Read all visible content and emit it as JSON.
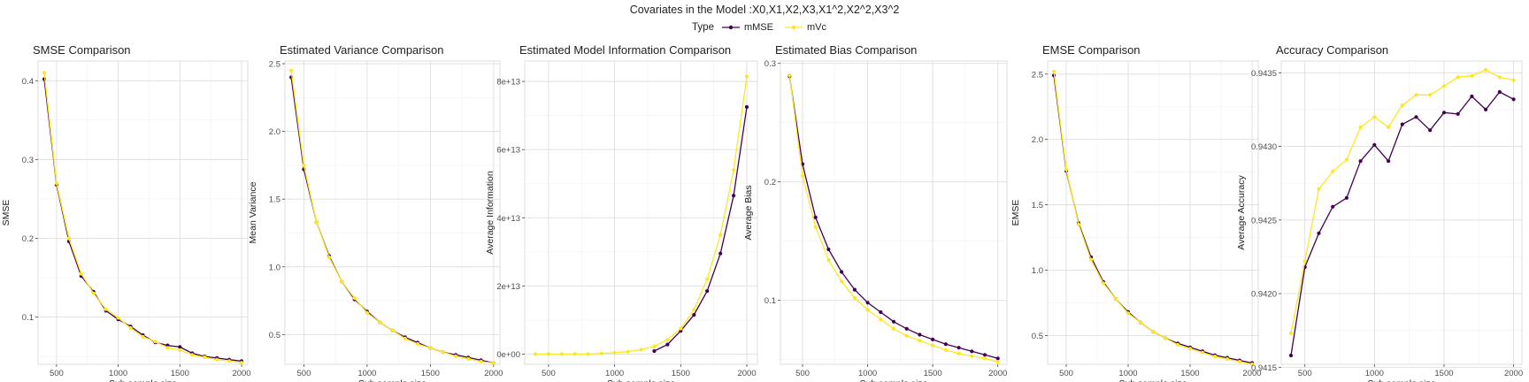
{
  "figure": {
    "title": "Covariates in the Model :X0,X1,X2,X3,X1^2,X2^2,X3^2",
    "legend": {
      "title": "Type",
      "items": [
        {
          "label": "mMSE",
          "color": "#440154"
        },
        {
          "label": "mVc",
          "color": "#FDE725"
        }
      ]
    }
  },
  "chart_data": [
    {
      "type": "line",
      "title": "SMSE Comparison",
      "xlabel": "Sub sample size",
      "ylabel": "SMSE",
      "x": [
        400,
        500,
        600,
        700,
        800,
        900,
        1000,
        1100,
        1200,
        1300,
        1400,
        1500,
        1600,
        1700,
        1800,
        1900,
        2000
      ],
      "xlim": [
        350,
        2050
      ],
      "ylim": [
        0.04,
        0.425
      ],
      "xticks": [
        500,
        1000,
        1500,
        2000
      ],
      "yticks": [
        0.1,
        0.2,
        0.3,
        0.4
      ],
      "ytick_labels": [
        "0.1",
        "0.2",
        "0.3",
        "0.4"
      ],
      "series": [
        {
          "name": "mMSE",
          "color": "#440154",
          "values": [
            0.402,
            0.268,
            0.196,
            0.152,
            0.132,
            0.108,
            0.097,
            0.088,
            0.077,
            0.068,
            0.064,
            0.062,
            0.054,
            0.05,
            0.048,
            0.046,
            0.044
          ]
        },
        {
          "name": "mVc",
          "color": "#FDE725",
          "values": [
            0.41,
            0.27,
            0.2,
            0.155,
            0.13,
            0.11,
            0.099,
            0.086,
            0.075,
            0.069,
            0.061,
            0.058,
            0.052,
            0.049,
            0.046,
            0.044,
            0.042
          ]
        }
      ]
    },
    {
      "type": "line",
      "title": "Estimated Variance Comparison",
      "xlabel": "Sub sample size",
      "ylabel": "Mean Variance",
      "x": [
        400,
        500,
        600,
        700,
        800,
        900,
        1000,
        1100,
        1200,
        1300,
        1400,
        1500,
        1600,
        1700,
        1800,
        1900,
        2000
      ],
      "xlim": [
        350,
        2050
      ],
      "ylim": [
        0.28,
        2.52
      ],
      "xticks": [
        500,
        1000,
        1500,
        2000
      ],
      "yticks": [
        0.5,
        1.0,
        1.5,
        2.0,
        2.5
      ],
      "ytick_labels": [
        "0.5",
        "1.0",
        "1.5",
        "2.0",
        "2.5"
      ],
      "series": [
        {
          "name": "mMSE",
          "color": "#440154",
          "values": [
            2.4,
            1.72,
            1.33,
            1.08,
            0.89,
            0.76,
            0.67,
            0.59,
            0.53,
            0.48,
            0.44,
            0.4,
            0.37,
            0.35,
            0.33,
            0.31,
            0.29
          ]
        },
        {
          "name": "mVc",
          "color": "#FDE725",
          "values": [
            2.45,
            1.75,
            1.33,
            1.07,
            0.89,
            0.77,
            0.66,
            0.59,
            0.53,
            0.47,
            0.43,
            0.4,
            0.37,
            0.34,
            0.32,
            0.3,
            0.29
          ]
        }
      ]
    },
    {
      "type": "line",
      "title": "Estimated Model Information Comparison",
      "xlabel": "Sub sample size",
      "ylabel": "Average Information",
      "x": [
        400,
        500,
        600,
        700,
        800,
        900,
        1000,
        1100,
        1200,
        1300,
        1400,
        1500,
        1600,
        1700,
        1800,
        1900,
        2000
      ],
      "xlim": [
        320,
        2080
      ],
      "ylim": [
        -3000000000000,
        86000000000000
      ],
      "xticks": [
        500,
        1000,
        1500,
        2000
      ],
      "yticks": [
        0,
        20000000000000,
        40000000000000,
        60000000000000,
        80000000000000
      ],
      "ytick_labels": [
        "0e+00",
        "2e+13",
        "4e+13",
        "6e+13",
        "8e+13"
      ],
      "series": [
        {
          "name": "mMSE",
          "color": "#440154",
          "values": [
            null,
            null,
            null,
            null,
            null,
            null,
            null,
            null,
            null,
            900000000000,
            2800000000000,
            6800000000000,
            11500000000000,
            18500000000000,
            29500000000000,
            46500000000000,
            72500000000000
          ]
        },
        {
          "name": "mVc",
          "color": "#FDE725",
          "values": [
            0,
            0,
            0,
            0,
            0,
            200000000000,
            400000000000,
            700000000000,
            1300000000000,
            2300000000000,
            4200000000000,
            7500000000000,
            13000000000000,
            22000000000000,
            35000000000000,
            54000000000000,
            81500000000000
          ]
        }
      ]
    },
    {
      "type": "line",
      "title": "Estimated Bias Comparison",
      "xlabel": "Sub sample size",
      "ylabel": "Average Bias",
      "x": [
        400,
        500,
        600,
        700,
        800,
        900,
        1000,
        1100,
        1200,
        1300,
        1400,
        1500,
        1600,
        1700,
        1800,
        1900,
        2000
      ],
      "xlim": [
        330,
        2070
      ],
      "ylim": [
        0.046,
        0.302
      ],
      "xticks": [
        500,
        1000,
        1500,
        2000
      ],
      "yticks": [
        0.1,
        0.2,
        0.3
      ],
      "ytick_labels": [
        "0.1",
        "0.2",
        "0.3"
      ],
      "series": [
        {
          "name": "mMSE",
          "color": "#440154",
          "values": [
            0.289,
            0.215,
            0.17,
            0.143,
            0.124,
            0.109,
            0.098,
            0.09,
            0.082,
            0.076,
            0.071,
            0.067,
            0.063,
            0.06,
            0.057,
            0.054,
            0.051
          ]
        },
        {
          "name": "mVc",
          "color": "#FDE725",
          "values": [
            0.29,
            0.205,
            0.162,
            0.134,
            0.116,
            0.102,
            0.092,
            0.084,
            0.076,
            0.07,
            0.066,
            0.062,
            0.058,
            0.055,
            0.053,
            0.051,
            0.048
          ]
        }
      ]
    },
    {
      "type": "line",
      "title": "EMSE Comparison",
      "xlabel": "Sub sample size",
      "ylabel": "EMSE",
      "x": [
        400,
        500,
        600,
        700,
        800,
        900,
        1000,
        1100,
        1200,
        1300,
        1400,
        1500,
        1600,
        1700,
        1800,
        1900,
        2000
      ],
      "xlim": [
        350,
        2050
      ],
      "ylim": [
        0.28,
        2.6
      ],
      "xticks": [
        500,
        1000,
        1500,
        2000
      ],
      "yticks": [
        0.5,
        1.0,
        1.5,
        2.0,
        2.5
      ],
      "ytick_labels": [
        "0.5",
        "1.0",
        "1.5",
        "2.0",
        "2.5"
      ],
      "series": [
        {
          "name": "mMSE",
          "color": "#440154",
          "values": [
            2.49,
            1.76,
            1.36,
            1.1,
            0.91,
            0.78,
            0.68,
            0.6,
            0.53,
            0.48,
            0.44,
            0.41,
            0.38,
            0.35,
            0.33,
            0.31,
            0.29
          ]
        },
        {
          "name": "mVc",
          "color": "#FDE725",
          "values": [
            2.52,
            1.77,
            1.35,
            1.08,
            0.9,
            0.78,
            0.67,
            0.6,
            0.53,
            0.48,
            0.43,
            0.4,
            0.37,
            0.34,
            0.32,
            0.3,
            0.28
          ]
        }
      ]
    },
    {
      "type": "line",
      "title": "Accuracy Comparison",
      "xlabel": "Sub sample size",
      "ylabel": "Average Accuracy",
      "x": [
        400,
        500,
        600,
        700,
        800,
        900,
        1000,
        1100,
        1200,
        1300,
        1400,
        1500,
        1600,
        1700,
        1800,
        1900,
        2000
      ],
      "xlim": [
        330,
        2060
      ],
      "ylim": [
        0.94152,
        0.94358
      ],
      "xticks": [
        500,
        1000,
        1500,
        2000
      ],
      "yticks": [
        0.9415,
        0.942,
        0.9425,
        0.943,
        0.9435
      ],
      "ytick_labels": [
        "0.9415",
        "0.9420",
        "0.9425",
        "0.9430",
        "0.9435"
      ],
      "series": [
        {
          "name": "mMSE",
          "color": "#440154",
          "values": [
            0.94158,
            0.94218,
            0.94241,
            0.94259,
            0.94265,
            0.9429,
            0.94301,
            0.9429,
            0.94315,
            0.9432,
            0.94311,
            0.94323,
            0.94322,
            0.94334,
            0.94325,
            0.94337,
            0.94332
          ]
        },
        {
          "name": "mVc",
          "color": "#FDE725",
          "values": [
            0.94173,
            0.94222,
            0.94271,
            0.94283,
            0.94291,
            0.94313,
            0.9432,
            0.94313,
            0.94328,
            0.94335,
            0.94335,
            0.94341,
            0.94347,
            0.94348,
            0.94352,
            0.94347,
            0.94345
          ]
        }
      ]
    }
  ]
}
